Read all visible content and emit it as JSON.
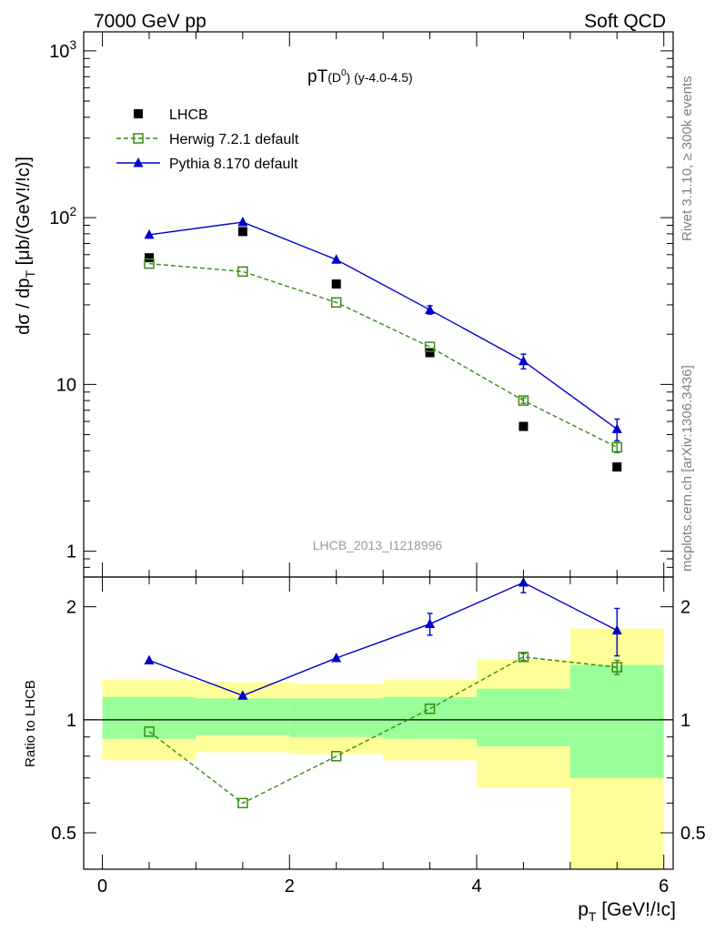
{
  "header": {
    "left": "7000 GeV pp",
    "right": "Soft QCD"
  },
  "side_labels": {
    "top": "Rivet 3.1.10, ≥ 300k events",
    "bottom": "mcplots.cern.ch [arXiv:1306.3436]"
  },
  "analysis_id": "LHCB_2013_I1218996",
  "chart_data": [
    {
      "type": "scatter",
      "panel": "main",
      "title": {
        "main": "pT",
        "paren_open": "(",
        "paren_base": "D",
        "paren_sup": "0",
        "paren_close": ")",
        "suffix": " (y-4.0-4.5)"
      },
      "ylabel": {
        "main": "dσ / dp",
        "sub": "T",
        "unit": " [μb/(GeV!/!c)]"
      },
      "yscale": "log",
      "ylim": [
        0.7,
        1300
      ],
      "xlim": [
        -0.2,
        6.1
      ],
      "yticks": [
        {
          "value": 1,
          "label": "1"
        },
        {
          "value": 10,
          "label": "10"
        },
        {
          "value": 100,
          "label": "10",
          "sup": "2"
        },
        {
          "value": 1000,
          "label": "10",
          "sup": "3"
        }
      ],
      "legend_position": "top-left",
      "series": [
        {
          "name": "LHCB",
          "style": "markers",
          "marker": "filled-square",
          "color": "#000000",
          "x": [
            0.5,
            1.5,
            2.5,
            3.5,
            4.5,
            5.5
          ],
          "y": [
            57.5,
            82.5,
            40.0,
            15.5,
            5.6,
            3.2
          ]
        },
        {
          "name": "Herwig 7.2.1 default",
          "style": "dashed-line",
          "marker": "open-square",
          "color": "#3a8a15",
          "x": [
            0.5,
            1.5,
            2.5,
            3.5,
            4.5,
            5.5
          ],
          "y": [
            53.0,
            47.5,
            31.0,
            16.8,
            8.0,
            4.2
          ],
          "err": [
            0,
            0,
            0,
            0,
            0.3,
            0.3
          ]
        },
        {
          "name": "Pythia 8.170 default",
          "style": "solid-line",
          "marker": "filled-triangle",
          "color": "#0000cc",
          "x": [
            0.5,
            1.5,
            2.5,
            3.5,
            4.5,
            5.5
          ],
          "y": [
            79.0,
            94.0,
            56.0,
            28.0,
            13.8,
            5.4
          ],
          "err": [
            0,
            0,
            0,
            1.6,
            1.4,
            0.8
          ]
        }
      ]
    },
    {
      "type": "scatter",
      "panel": "ratio",
      "ylabel": "Ratio to LHCB",
      "xlabel": {
        "main": "p",
        "sub": "T",
        "unit": " [GeV!/!c]"
      },
      "yscale": "log",
      "ylim": [
        0.4,
        2.4
      ],
      "xlim": [
        -0.2,
        6.1
      ],
      "yticks": [
        {
          "value": 0.5,
          "label": "0.5"
        },
        {
          "value": 1,
          "label": "1"
        },
        {
          "value": 2,
          "label": "2"
        }
      ],
      "xticks": [
        {
          "value": 0,
          "label": "0"
        },
        {
          "value": 2,
          "label": "2"
        },
        {
          "value": 4,
          "label": "4"
        },
        {
          "value": 6,
          "label": "6"
        }
      ],
      "reference_line": 1,
      "uncertainty_bands": {
        "bins": [
          [
            0,
            1
          ],
          [
            1,
            2
          ],
          [
            2,
            3
          ],
          [
            3,
            4
          ],
          [
            4,
            5
          ],
          [
            5,
            6
          ]
        ],
        "outer_color": "#ffff99",
        "inner_color": "#99ff99",
        "outer": [
          [
            0.78,
            1.28
          ],
          [
            0.82,
            1.26
          ],
          [
            0.81,
            1.25
          ],
          [
            0.78,
            1.28
          ],
          [
            0.66,
            1.45
          ],
          [
            0.34,
            1.75
          ]
        ],
        "inner": [
          [
            0.89,
            1.15
          ],
          [
            0.91,
            1.14
          ],
          [
            0.9,
            1.14
          ],
          [
            0.89,
            1.15
          ],
          [
            0.85,
            1.21
          ],
          [
            0.7,
            1.4
          ]
        ]
      },
      "series": [
        {
          "name": "Herwig 7.2.1 default",
          "style": "dashed-line",
          "marker": "open-square",
          "color": "#3a8a15",
          "x": [
            0.5,
            1.5,
            2.5,
            3.5,
            4.5,
            5.5
          ],
          "y": [
            0.93,
            0.6,
            0.8,
            1.07,
            1.47,
            1.38
          ],
          "err": [
            0,
            0,
            0,
            0,
            0.03,
            0.06
          ]
        },
        {
          "name": "Pythia 8.170 default",
          "style": "solid-line",
          "marker": "filled-triangle",
          "color": "#0000cc",
          "x": [
            0.5,
            1.5,
            2.5,
            3.5,
            4.5,
            5.5
          ],
          "y": [
            1.44,
            1.16,
            1.46,
            1.8,
            2.38,
            1.73
          ],
          "err": [
            0,
            0,
            0,
            0.12,
            0.2,
            0.25
          ]
        }
      ]
    }
  ]
}
